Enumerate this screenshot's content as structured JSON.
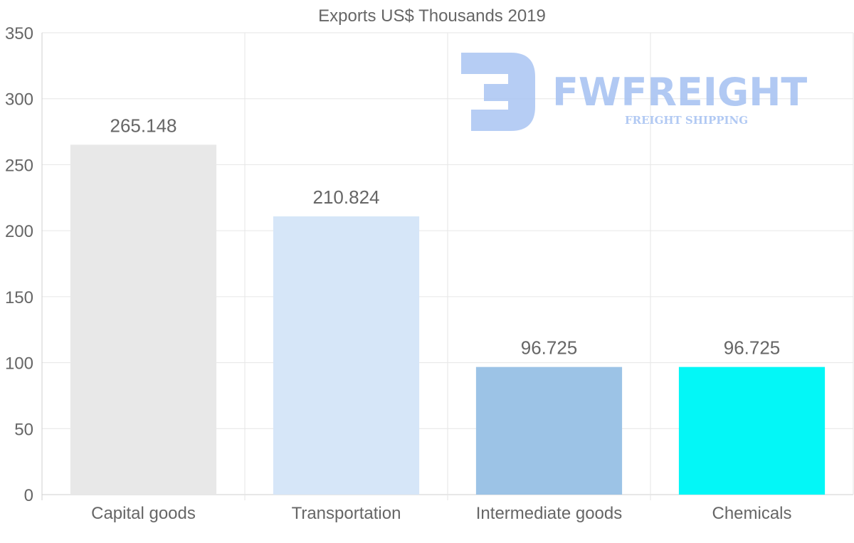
{
  "chart_data": {
    "type": "bar",
    "title": "Exports US$ Thousands 2019",
    "categories": [
      "Capital goods",
      "Transportation",
      "Intermediate goods",
      "Chemicals"
    ],
    "values": [
      265.148,
      210.824,
      96.725,
      96.725
    ],
    "data_labels": [
      "265.148",
      "210.824",
      "96.725",
      "96.725"
    ],
    "bar_colors": [
      "#e8e8e8",
      "#d6e6f8",
      "#9cc3e6",
      "#03f7f7"
    ],
    "ylim": [
      0,
      350
    ],
    "yticks": [
      0,
      50,
      100,
      150,
      200,
      250,
      300,
      350
    ],
    "xlabel": "",
    "ylabel": "",
    "grid": true,
    "legend": "none"
  },
  "watermark": {
    "brand": "FWFREIGHT",
    "tagline": "FREIGHT SHIPPING",
    "color": "#a9c4f2"
  }
}
